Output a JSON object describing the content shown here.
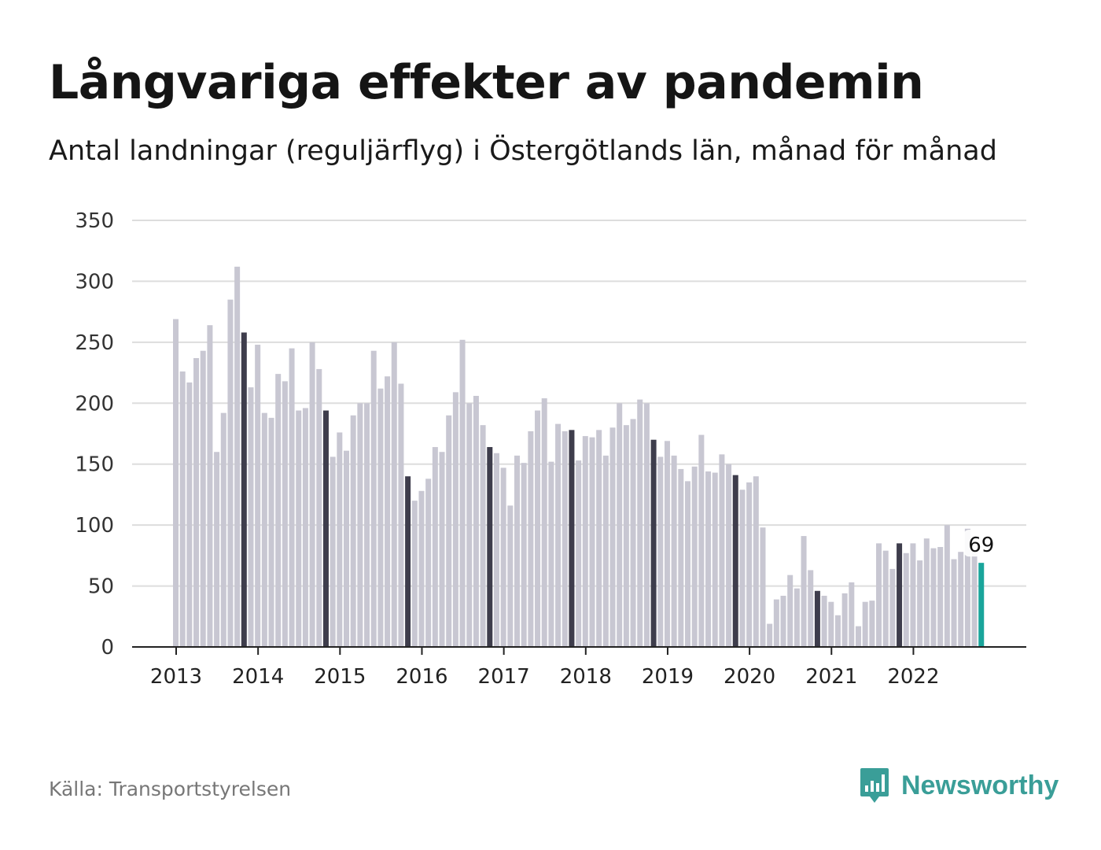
{
  "header": {
    "title": "Långvariga effekter av pandemin",
    "subtitle": "Antal landningar (reguljärflyg) i Östergötlands län, månad för månad"
  },
  "footer": {
    "source": "Källa: Transportstyrelsen",
    "brand": "Newsworthy"
  },
  "colors": {
    "bar": "#c8c7d2",
    "november_bar": "#3e3d4c",
    "latest_bar": "#1aa59b",
    "gridline": "#dddddd",
    "axis": "#222222",
    "brand": "#3a9e98"
  },
  "chart_data": {
    "type": "bar",
    "title": "Långvariga effekter av pandemin",
    "subtitle": "Antal landningar (reguljärflyg) i Östergötlands län, månad för månad",
    "xlabel": "",
    "ylabel": "",
    "ylim": [
      0,
      350
    ],
    "yticks": [
      0,
      50,
      100,
      150,
      200,
      250,
      300,
      350
    ],
    "xtick_labels": [
      "2013",
      "2014",
      "2015",
      "2016",
      "2017",
      "2018",
      "2019",
      "2020",
      "2021",
      "2022"
    ],
    "grid": true,
    "start": "2013-01",
    "frequency": "monthly",
    "highlight": "November each year shown dark; latest month shown teal with value label",
    "values": [
      269,
      226,
      217,
      237,
      243,
      264,
      160,
      192,
      285,
      312,
      258,
      213,
      248,
      192,
      188,
      224,
      218,
      245,
      194,
      196,
      250,
      228,
      194,
      156,
      176,
      161,
      190,
      200,
      200,
      243,
      212,
      222,
      250,
      216,
      140,
      120,
      128,
      138,
      164,
      160,
      190,
      209,
      252,
      200,
      206,
      182,
      164,
      159,
      147,
      116,
      157,
      151,
      177,
      194,
      204,
      152,
      183,
      177,
      178,
      153,
      173,
      172,
      178,
      157,
      180,
      200,
      182,
      187,
      203,
      200,
      170,
      156,
      169,
      157,
      146,
      136,
      148,
      174,
      144,
      143,
      158,
      150,
      141,
      129,
      135,
      140,
      98,
      19,
      39,
      42,
      59,
      48,
      91,
      63,
      46,
      42,
      37,
      26,
      44,
      53,
      17,
      37,
      38,
      85,
      79,
      64,
      85,
      77,
      85,
      71,
      89,
      81,
      82,
      100,
      72,
      78,
      97,
      77,
      69
    ],
    "last_value_label": "69"
  }
}
